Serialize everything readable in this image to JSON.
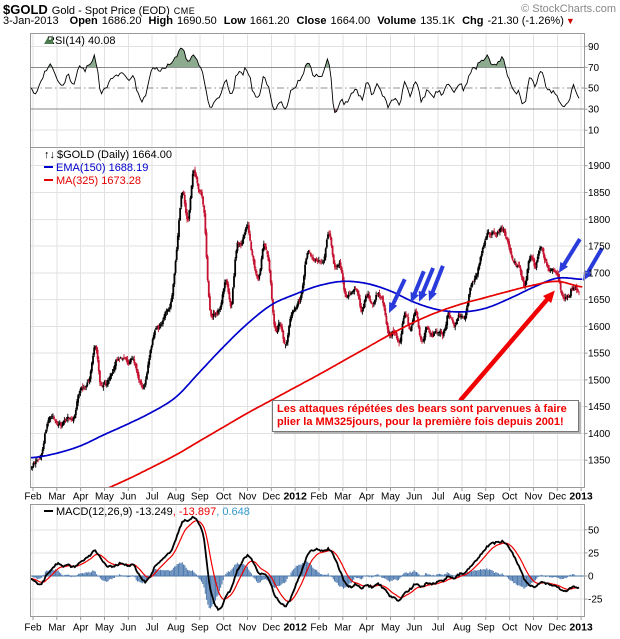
{
  "header": {
    "symbol": "$GOLD",
    "title": "Gold - Spot Price (EOD)",
    "exchange": "CME",
    "copyright": "© StockCharts.com",
    "date": "3-Jan-2013",
    "fields": [
      {
        "label": "Open",
        "value": "1686.20"
      },
      {
        "label": "High",
        "value": "1690.50"
      },
      {
        "label": "Low",
        "value": "1661.20"
      },
      {
        "label": "Close",
        "value": "1664.00"
      },
      {
        "label": "Volume",
        "value": "135.1K"
      },
      {
        "label": "Chg",
        "value": "-21.30 (-1.26%)"
      }
    ],
    "down_triangle": "▼"
  },
  "legends": {
    "rsi": "RSI(14) 40.08",
    "price_icon": "↑↓",
    "symbol_line": "$GOLD (Daily) 1664.00",
    "ema": "EMA(150) 1688.19",
    "ma": "MA(325) 1673.28",
    "macd": "MACD(12,26,9) -13.249",
    "macd_signal": ", -13.897",
    "macd_hist": ", 0.648"
  },
  "colors": {
    "up_bar": "#000000",
    "down_bar": "#c41230",
    "ema": "#0000cc",
    "ma": "#e60000",
    "rsi_line": "#000000",
    "rsi_over_fill": "#8dab8f",
    "rsi_under_fill": "#a2656b",
    "rsi_band_line": "#8a8a8a",
    "macd_line": "#000000",
    "macd_signal": "#f00000",
    "macd_hist": "#4a77ad",
    "macd_hist_text": "#3399cc",
    "arrow_blue": "#2a3bdc",
    "arrow_red": "#f00000",
    "annotation_text": "#f00000",
    "grid": "#e2e2e2",
    "panel_border": "#999999",
    "copyright_gray": "#878787",
    "icon_green": "#4e7a52"
  },
  "chart_data": {
    "type": "multi-panel-stock-chart",
    "x_unit": "weeks from late Jan-2011 to 3-Jan-2013",
    "x_categories": [
      "Feb",
      "Mar",
      "Apr",
      "May",
      "Jun",
      "Jul",
      "Aug",
      "Sep",
      "Oct",
      "Nov",
      "Dec",
      "2012",
      "Feb",
      "Mar",
      "Apr",
      "May",
      "Jun",
      "Jul",
      "Aug",
      "Sep",
      "Oct",
      "Nov",
      "Dec",
      "2013"
    ],
    "panels": [
      {
        "type": "line",
        "name": "RSI(14)",
        "last": 40.08,
        "ylim": [
          -6.5,
          102.2
        ],
        "ticks": [
          90,
          70,
          50,
          30,
          10
        ],
        "overbought": 70,
        "midline": 50,
        "oversold": 30,
        "weekly_values": [
          50,
          44,
          55,
          68,
          72,
          58,
          55,
          62,
          55,
          70,
          68,
          72,
          79,
          48,
          50,
          58,
          63,
          64,
          57,
          60,
          44,
          40,
          62,
          70,
          66,
          71,
          73,
          82,
          87,
          78,
          80,
          72,
          60,
          34,
          38,
          45,
          58,
          42,
          62,
          64,
          68,
          48,
          42,
          60,
          48,
          30,
          38,
          32,
          46,
          54,
          60,
          74,
          64,
          62,
          64,
          76,
          26,
          38,
          36,
          44,
          50,
          40,
          54,
          45,
          54,
          42,
          33,
          40,
          36,
          55,
          42,
          56,
          38,
          48,
          42,
          46,
          44,
          56,
          46,
          54,
          50,
          66,
          70,
          76,
          80,
          74,
          75,
          78,
          60,
          48,
          45,
          35,
          62,
          52,
          68,
          50,
          47,
          44,
          31,
          36,
          52,
          40
        ]
      },
      {
        "type": "ohlc",
        "name": "$GOLD (Daily)",
        "last": 1664.0,
        "ylim": [
          1299,
          1934
        ],
        "ticks": [
          1900,
          1850,
          1800,
          1750,
          1700,
          1650,
          1600,
          1550,
          1500,
          1450,
          1400,
          1350
        ],
        "weekly_closes": [
          1333,
          1349,
          1358,
          1409,
          1432,
          1417,
          1419,
          1430,
          1428,
          1474,
          1486,
          1505,
          1563,
          1491,
          1494,
          1512,
          1537,
          1542,
          1532,
          1539,
          1500,
          1487,
          1545,
          1594,
          1601,
          1628,
          1648,
          1747,
          1852,
          1797,
          1884,
          1859,
          1815,
          1640,
          1623,
          1636,
          1683,
          1642,
          1747,
          1756,
          1788,
          1725,
          1688,
          1751,
          1712,
          1598,
          1606,
          1566,
          1617,
          1639,
          1664,
          1739,
          1725,
          1722,
          1724,
          1776,
          1712,
          1714,
          1660,
          1662,
          1669,
          1630,
          1658,
          1642,
          1662,
          1642,
          1584,
          1592,
          1573,
          1625,
          1594,
          1628,
          1571,
          1597,
          1583,
          1592,
          1585,
          1623,
          1603,
          1620,
          1616,
          1670,
          1692,
          1735,
          1770,
          1773,
          1776,
          1781,
          1754,
          1721,
          1711,
          1677,
          1731,
          1714,
          1751,
          1715,
          1705,
          1697,
          1657,
          1655,
          1675,
          1664
        ],
        "overlays": [
          {
            "name": "EMA(150)",
            "last": 1688.19,
            "monthly_values": [
              1355,
              1363,
              1377,
              1398,
              1418,
              1440,
              1468,
              1515,
              1562,
              1605,
              1640,
              1660,
              1676,
              1684,
              1680,
              1666,
              1645,
              1631,
              1627,
              1634,
              1652,
              1673,
              1690,
              1688
            ]
          },
          {
            "name": "MA(325)",
            "last": 1673.28,
            "monthly_values": [
              1240,
              1258,
              1276,
              1295,
              1315,
              1337,
              1360,
              1386,
              1412,
              1438,
              1462,
              1486,
              1510,
              1535,
              1560,
              1585,
              1608,
              1627,
              1642,
              1654,
              1666,
              1677,
              1684,
              1674
            ]
          }
        ],
        "annotations": {
          "blue_arrows": [
            {
              "from": [
                15.6,
                1688
              ],
              "to": [
                14.94,
                1625
              ]
            },
            {
              "from": [
                16.4,
                1703
              ],
              "to": [
                15.86,
                1644
              ]
            },
            {
              "from": [
                16.79,
                1709
              ],
              "to": [
                16.2,
                1646
              ]
            },
            {
              "from": [
                17.2,
                1713
              ],
              "to": [
                16.62,
                1647
              ]
            },
            {
              "from": [
                22.95,
                1763
              ],
              "to": [
                22.07,
                1700
              ]
            },
            {
              "from": [
                23.88,
                1746
              ],
              "to": [
                23.08,
                1685
              ]
            }
          ],
          "red_arrow": {
            "from": [
              17.92,
              1461
            ],
            "to": [
              21.9,
              1667
            ]
          },
          "text_box": "Les attaques répétées des bears sont parvenues à faire plier la MM325jours, pour la première fois depuis 2001!"
        }
      },
      {
        "type": "macd",
        "name": "MACD(12,26,9)",
        "last": {
          "macd": -13.249,
          "signal": -13.897,
          "hist": 0.648
        },
        "ylim": [
          -43.8,
          77.3
        ],
        "ticks": [
          50,
          25,
          0,
          -25
        ],
        "weekly_values": [
          -2,
          -6,
          -9,
          0,
          8,
          13,
          11,
          12,
          10,
          14,
          18,
          22,
          27,
          20,
          12,
          10,
          12,
          14,
          11,
          12,
          2,
          -6,
          -2,
          10,
          16,
          22,
          28,
          42,
          58,
          60,
          63,
          58,
          40,
          -8,
          -30,
          -36,
          -22,
          -14,
          4,
          15,
          22,
          16,
          4,
          2,
          -4,
          -20,
          -28,
          -32,
          -24,
          -8,
          6,
          22,
          28,
          29,
          27,
          29,
          20,
          6,
          -8,
          -12,
          -9,
          -13,
          -10,
          -12,
          -9,
          -13,
          -20,
          -24,
          -26,
          -18,
          -14,
          -8,
          -12,
          -8,
          -9,
          -6,
          -5,
          0,
          -2,
          2,
          4,
          10,
          16,
          24,
          31,
          35,
          36,
          37,
          32,
          22,
          10,
          -4,
          -10,
          -12,
          -6,
          -8,
          -10,
          -12,
          -16,
          -15,
          -11,
          -13
        ]
      }
    ]
  }
}
